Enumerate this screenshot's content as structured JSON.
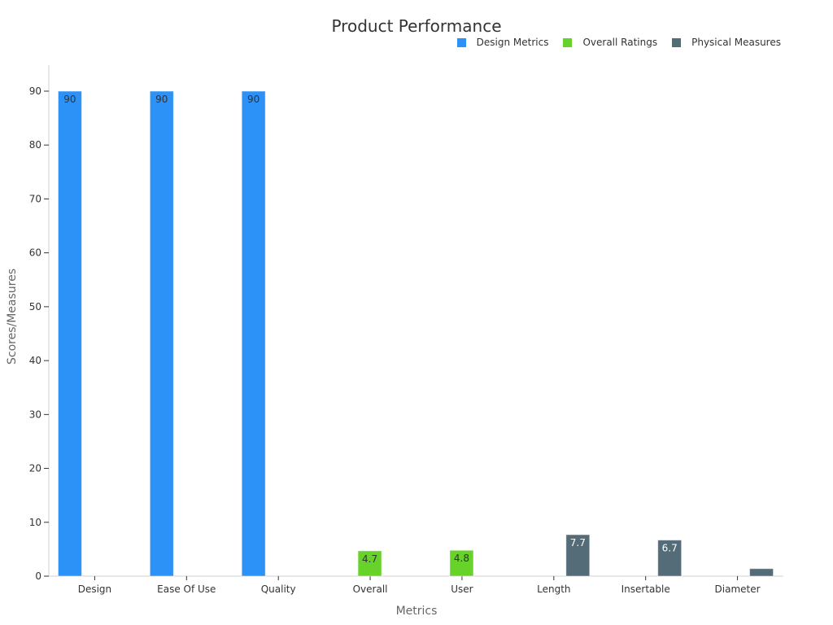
{
  "chart_data": {
    "type": "bar",
    "title": "Product Performance",
    "xlabel": "Metrics",
    "ylabel": "Scores/Measures",
    "ylim": [
      0,
      95
    ],
    "yticks": [
      0,
      10,
      20,
      30,
      40,
      50,
      60,
      70,
      80,
      90
    ],
    "grid": false,
    "legend_position": "top-right",
    "categories": [
      "Design",
      "Ease Of Use",
      "Quality",
      "Overall",
      "User",
      "Length",
      "Insertable",
      "Diameter"
    ],
    "series": [
      {
        "name": "Design Metrics",
        "color": "#2d92f7",
        "values": [
          90,
          90,
          90,
          null,
          null,
          null,
          null,
          null
        ]
      },
      {
        "name": "Overall Ratings",
        "color": "#66d22a",
        "values": [
          null,
          null,
          null,
          4.7,
          4.8,
          null,
          null,
          null
        ]
      },
      {
        "name": "Physical Measures",
        "color": "#546b78",
        "values": [
          null,
          null,
          null,
          null,
          null,
          7.7,
          6.7,
          1.4
        ]
      }
    ],
    "data_labels": [
      "90",
      "90",
      "90",
      "4.7",
      "4.8",
      "7.7",
      "6.7",
      "1.4"
    ]
  }
}
